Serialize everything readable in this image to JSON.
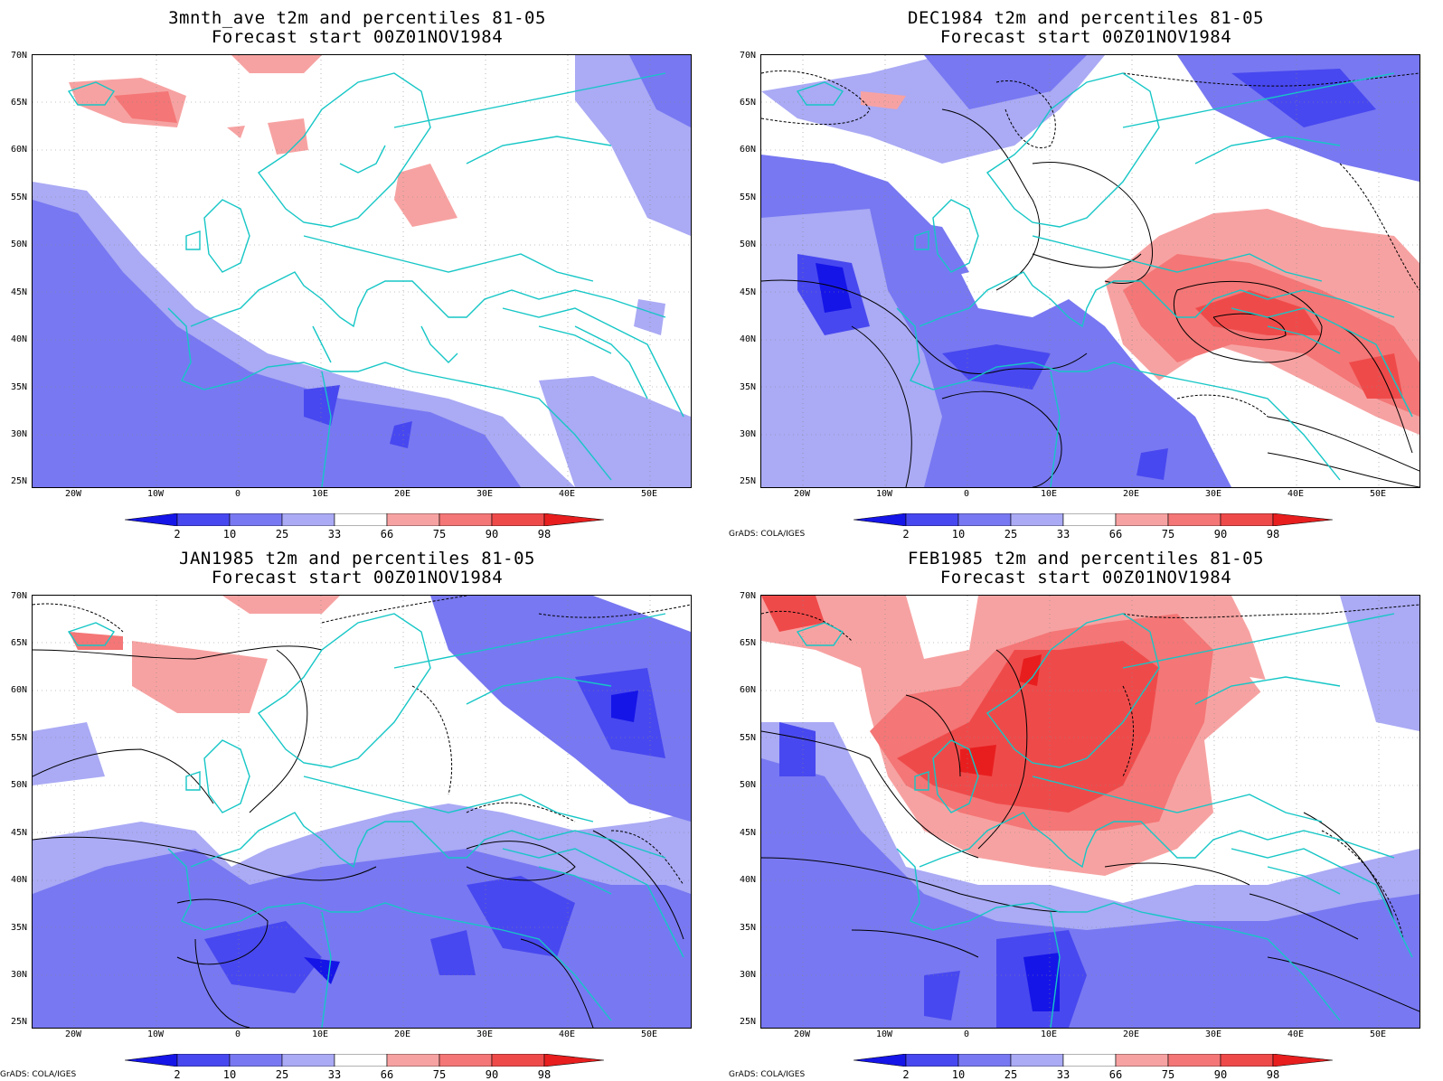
{
  "credit": "GrADS: COLA/IGES",
  "lat_labels": [
    "70N",
    "65N",
    "60N",
    "55N",
    "50N",
    "45N",
    "40N",
    "35N",
    "30N",
    "25N"
  ],
  "lon_labels": [
    "20W",
    "10W",
    "0",
    "10E",
    "20E",
    "30E",
    "40E",
    "50E"
  ],
  "colorbar": {
    "labels": [
      "2",
      "10",
      "25",
      "33",
      "66",
      "75",
      "90",
      "98"
    ],
    "colors": [
      "#1515e8",
      "#4848f0",
      "#7878f2",
      "#aaaaf5",
      "#ffffff",
      "#f7a2a2",
      "#f47676",
      "#ef4a4a",
      "#e81e1e"
    ]
  },
  "panels": [
    {
      "id": "p1",
      "title1": "3mnth_ave t2m and percentiles 81-05",
      "title2": "Forecast start 00Z01NOV1984",
      "credit": ""
    },
    {
      "id": "p2",
      "title1": "DEC1984 t2m and percentiles 81-05",
      "title2": "Forecast start 00Z01NOV1984",
      "credit": "GrADS: COLA/IGES"
    },
    {
      "id": "p3",
      "title1": "JAN1985 t2m and percentiles 81-05",
      "title2": "Forecast start 00Z01NOV1984",
      "credit": "GrADS: COLA/IGES"
    },
    {
      "id": "p4",
      "title1": "FEB1985 t2m and percentiles 81-05",
      "title2": "Forecast start 00Z01NOV1984",
      "credit": "GrADS: COLA/IGES"
    }
  ]
}
